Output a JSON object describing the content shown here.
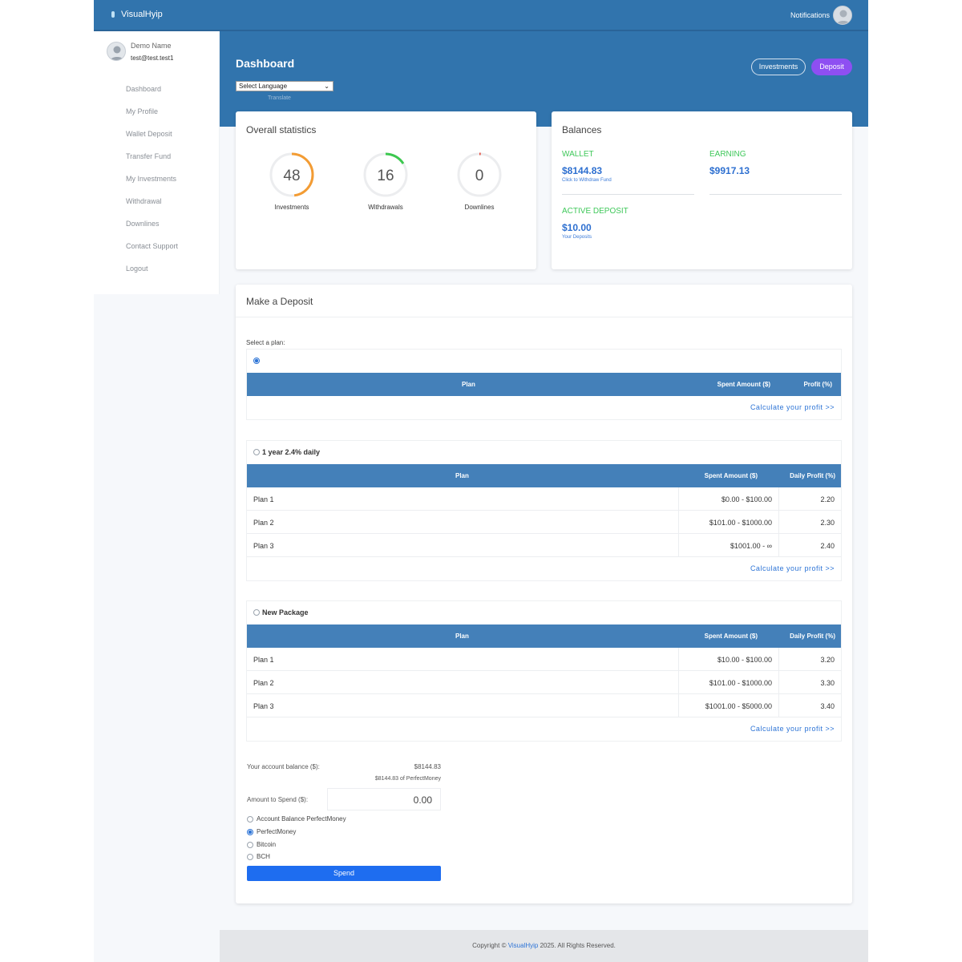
{
  "app": {
    "brand": "VisualHyip",
    "notifications_label": "Notifications"
  },
  "user": {
    "name": "Demo Name",
    "email": "test@test.test1"
  },
  "sidebar": {
    "items": [
      {
        "label": "Dashboard"
      },
      {
        "label": "My Profile"
      },
      {
        "label": "Wallet Deposit"
      },
      {
        "label": "Transfer Fund"
      },
      {
        "label": "My Investments"
      },
      {
        "label": "Withdrawal"
      },
      {
        "label": "Downlines"
      },
      {
        "label": "Contact Support"
      },
      {
        "label": "Logout"
      }
    ]
  },
  "header": {
    "title": "Dashboard",
    "language_select": "Select Language",
    "translate_label": "Translate",
    "investments_button": "Investments",
    "deposit_button": "Deposit"
  },
  "stats": {
    "title": "Overall statistics",
    "items": [
      {
        "value": "48",
        "label": "Investments",
        "progress": 0.48,
        "color": "#f39c34"
      },
      {
        "value": "16",
        "label": "Withdrawals",
        "progress": 0.16,
        "color": "#3cc84f"
      },
      {
        "value": "0",
        "label": "Downlines",
        "progress": 0.01,
        "color": "#e74c3c"
      }
    ]
  },
  "balances": {
    "title": "Balances",
    "wallet_label": "WALLET",
    "wallet_value": "$8144.83",
    "wallet_link": "Click to Withdraw Fund",
    "earning_label": "EARNING",
    "earning_value": "$9917.13",
    "active_label": "ACTIVE DEPOSIT",
    "active_value": "$10.00",
    "active_link": "Your Deposits"
  },
  "deposit": {
    "title": "Make a Deposit",
    "select_plan_label": "Select a plan:",
    "calc_link": "Calculate your profit >>",
    "plans": [
      {
        "name": "",
        "selected": true,
        "headers": [
          "Plan",
          "Spent Amount ($)",
          "Profit (%)"
        ],
        "rows": []
      },
      {
        "name": "1 year 2.4% daily",
        "selected": false,
        "headers": [
          "Plan",
          "Spent Amount ($)",
          "Daily Profit (%)"
        ],
        "rows": [
          [
            "Plan 1",
            "$0.00 - $100.00",
            "2.20"
          ],
          [
            "Plan 2",
            "$101.00 - $1000.00",
            "2.30"
          ],
          [
            "Plan 3",
            "$1001.00 - ∞",
            "2.40"
          ]
        ]
      },
      {
        "name": "New Package",
        "selected": false,
        "headers": [
          "Plan",
          "Spent Amount ($)",
          "Daily Profit (%)"
        ],
        "rows": [
          [
            "Plan 1",
            "$10.00 - $100.00",
            "3.20"
          ],
          [
            "Plan 2",
            "$101.00 - $1000.00",
            "3.30"
          ],
          [
            "Plan 3",
            "$1001.00 - $5000.00",
            "3.40"
          ]
        ]
      }
    ],
    "balance_label": "Your account balance ($):",
    "balance_value": "$8144.83",
    "balance_sub": "$8144.83 of PerfectMoney",
    "amount_label": "Amount to Spend ($):",
    "amount_value": "0.00",
    "payment_options": [
      {
        "label": "Account Balance PerfectMoney",
        "selected": false
      },
      {
        "label": "PerfectMoney",
        "selected": true
      },
      {
        "label": "Bitcoin",
        "selected": false
      },
      {
        "label": "BCH",
        "selected": false
      }
    ],
    "spend_button": "Spend"
  },
  "footer": {
    "prefix": "Copyright ©",
    "brand": "VisualHyip",
    "suffix": "2025. All Rights Reserved."
  }
}
